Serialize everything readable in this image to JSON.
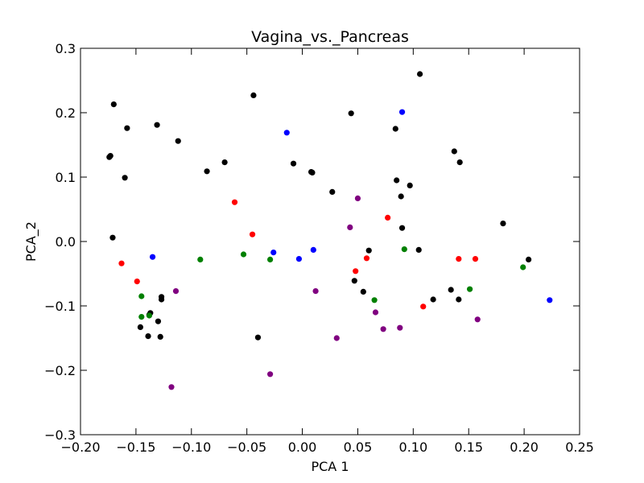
{
  "chart_data": {
    "type": "scatter",
    "title": "Vagina_vs._Pancreas",
    "xlabel": "PCA 1",
    "ylabel": "PCA_2",
    "xlim": [
      -0.2,
      0.25
    ],
    "ylim": [
      -0.3,
      0.3
    ],
    "grid": false,
    "x_ticks": [
      "−0.20",
      "−0.15",
      "−0.10",
      "−0.05",
      "0.00",
      "0.05",
      "0.10",
      "0.15",
      "0.20",
      "0.25"
    ],
    "y_ticks": [
      "−0.3",
      "−0.2",
      "−0.1",
      "0.0",
      "0.1",
      "0.2",
      "0.3"
    ],
    "series": [
      {
        "color": "#000000",
        "points": [
          [
            -0.174,
            0.131
          ],
          [
            -0.173,
            0.133
          ],
          [
            -0.17,
            0.213
          ],
          [
            -0.158,
            0.176
          ],
          [
            -0.16,
            0.099
          ],
          [
            -0.171,
            0.006
          ],
          [
            -0.131,
            0.181
          ],
          [
            -0.112,
            0.156
          ],
          [
            -0.086,
            0.109
          ],
          [
            -0.07,
            0.123
          ],
          [
            -0.044,
            0.227
          ],
          [
            -0.008,
            0.121
          ],
          [
            0.008,
            0.108
          ],
          [
            0.009,
            0.107
          ],
          [
            0.027,
            0.077
          ],
          [
            0.044,
            0.199
          ],
          [
            0.084,
            0.175
          ],
          [
            0.106,
            0.26
          ],
          [
            0.137,
            0.14
          ],
          [
            0.142,
            0.123
          ],
          [
            0.085,
            0.095
          ],
          [
            0.097,
            0.087
          ],
          [
            0.089,
            0.07
          ],
          [
            0.181,
            0.028
          ],
          [
            0.09,
            0.021
          ],
          [
            0.06,
            -0.014
          ],
          [
            0.105,
            -0.013
          ],
          [
            0.204,
            -0.028
          ],
          [
            0.047,
            -0.061
          ],
          [
            0.055,
            -0.078
          ],
          [
            0.134,
            -0.075
          ],
          [
            0.141,
            -0.09
          ],
          [
            0.118,
            -0.09
          ],
          [
            -0.127,
            -0.086
          ],
          [
            -0.127,
            -0.09
          ],
          [
            -0.137,
            -0.111
          ],
          [
            -0.138,
            -0.114
          ],
          [
            -0.13,
            -0.124
          ],
          [
            -0.146,
            -0.133
          ],
          [
            -0.139,
            -0.147
          ],
          [
            -0.128,
            -0.148
          ],
          [
            -0.04,
            -0.149
          ]
        ]
      },
      {
        "color": "#0000ff",
        "points": [
          [
            -0.014,
            0.169
          ],
          [
            0.09,
            0.201
          ],
          [
            -0.135,
            -0.024
          ],
          [
            -0.026,
            -0.017
          ],
          [
            -0.003,
            -0.027
          ],
          [
            0.01,
            -0.013
          ],
          [
            0.223,
            -0.091
          ]
        ]
      },
      {
        "color": "#ff0000",
        "points": [
          [
            -0.061,
            0.061
          ],
          [
            -0.045,
            0.011
          ],
          [
            0.077,
            0.037
          ],
          [
            -0.163,
            -0.034
          ],
          [
            -0.149,
            -0.062
          ],
          [
            0.058,
            -0.026
          ],
          [
            0.141,
            -0.027
          ],
          [
            0.156,
            -0.027
          ],
          [
            0.048,
            -0.046
          ],
          [
            0.109,
            -0.101
          ]
        ]
      },
      {
        "color": "#008000",
        "points": [
          [
            -0.092,
            -0.028
          ],
          [
            -0.053,
            -0.02
          ],
          [
            -0.029,
            -0.028
          ],
          [
            0.092,
            -0.012
          ],
          [
            -0.145,
            -0.085
          ],
          [
            -0.145,
            -0.117
          ],
          [
            -0.138,
            -0.115
          ],
          [
            0.065,
            -0.091
          ],
          [
            0.151,
            -0.074
          ],
          [
            0.199,
            -0.04
          ]
        ]
      },
      {
        "color": "#800080",
        "points": [
          [
            0.05,
            0.067
          ],
          [
            0.043,
            0.022
          ],
          [
            -0.114,
            -0.077
          ],
          [
            0.012,
            -0.077
          ],
          [
            0.066,
            -0.11
          ],
          [
            0.073,
            -0.136
          ],
          [
            0.088,
            -0.134
          ],
          [
            0.158,
            -0.121
          ],
          [
            0.031,
            -0.15
          ],
          [
            -0.029,
            -0.206
          ],
          [
            -0.118,
            -0.226
          ]
        ]
      }
    ]
  }
}
